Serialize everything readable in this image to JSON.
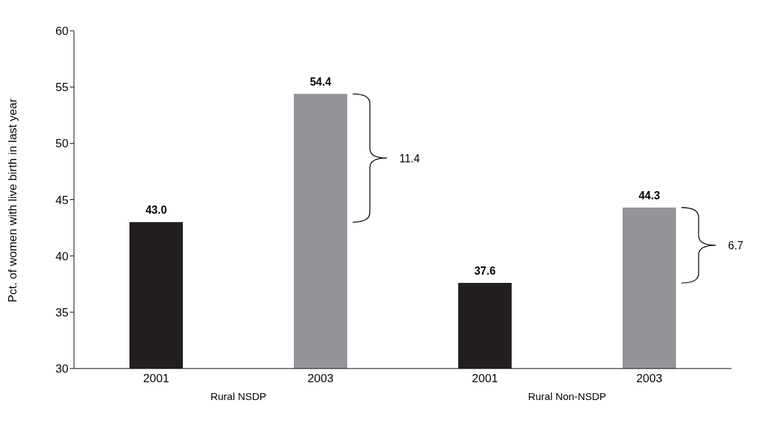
{
  "chart_data": {
    "type": "bar",
    "ylabel": "Pct. of women with live birth in last year",
    "categories": [
      "2001",
      "2003",
      "2001",
      "2003"
    ],
    "values": [
      43.0,
      54.4,
      37.6,
      44.3
    ],
    "colors": [
      "#231f20",
      "#939598",
      "#231f20",
      "#939598"
    ],
    "value_labels": [
      "43.0",
      "54.4",
      "37.6",
      "44.3"
    ],
    "ylim": [
      30,
      60
    ],
    "yticks": [
      30,
      35,
      40,
      45,
      50,
      55,
      60
    ],
    "annotations": [
      "Rural NSDP",
      "Rural Non-NSDP",
      "11.4",
      "6.7"
    ]
  }
}
